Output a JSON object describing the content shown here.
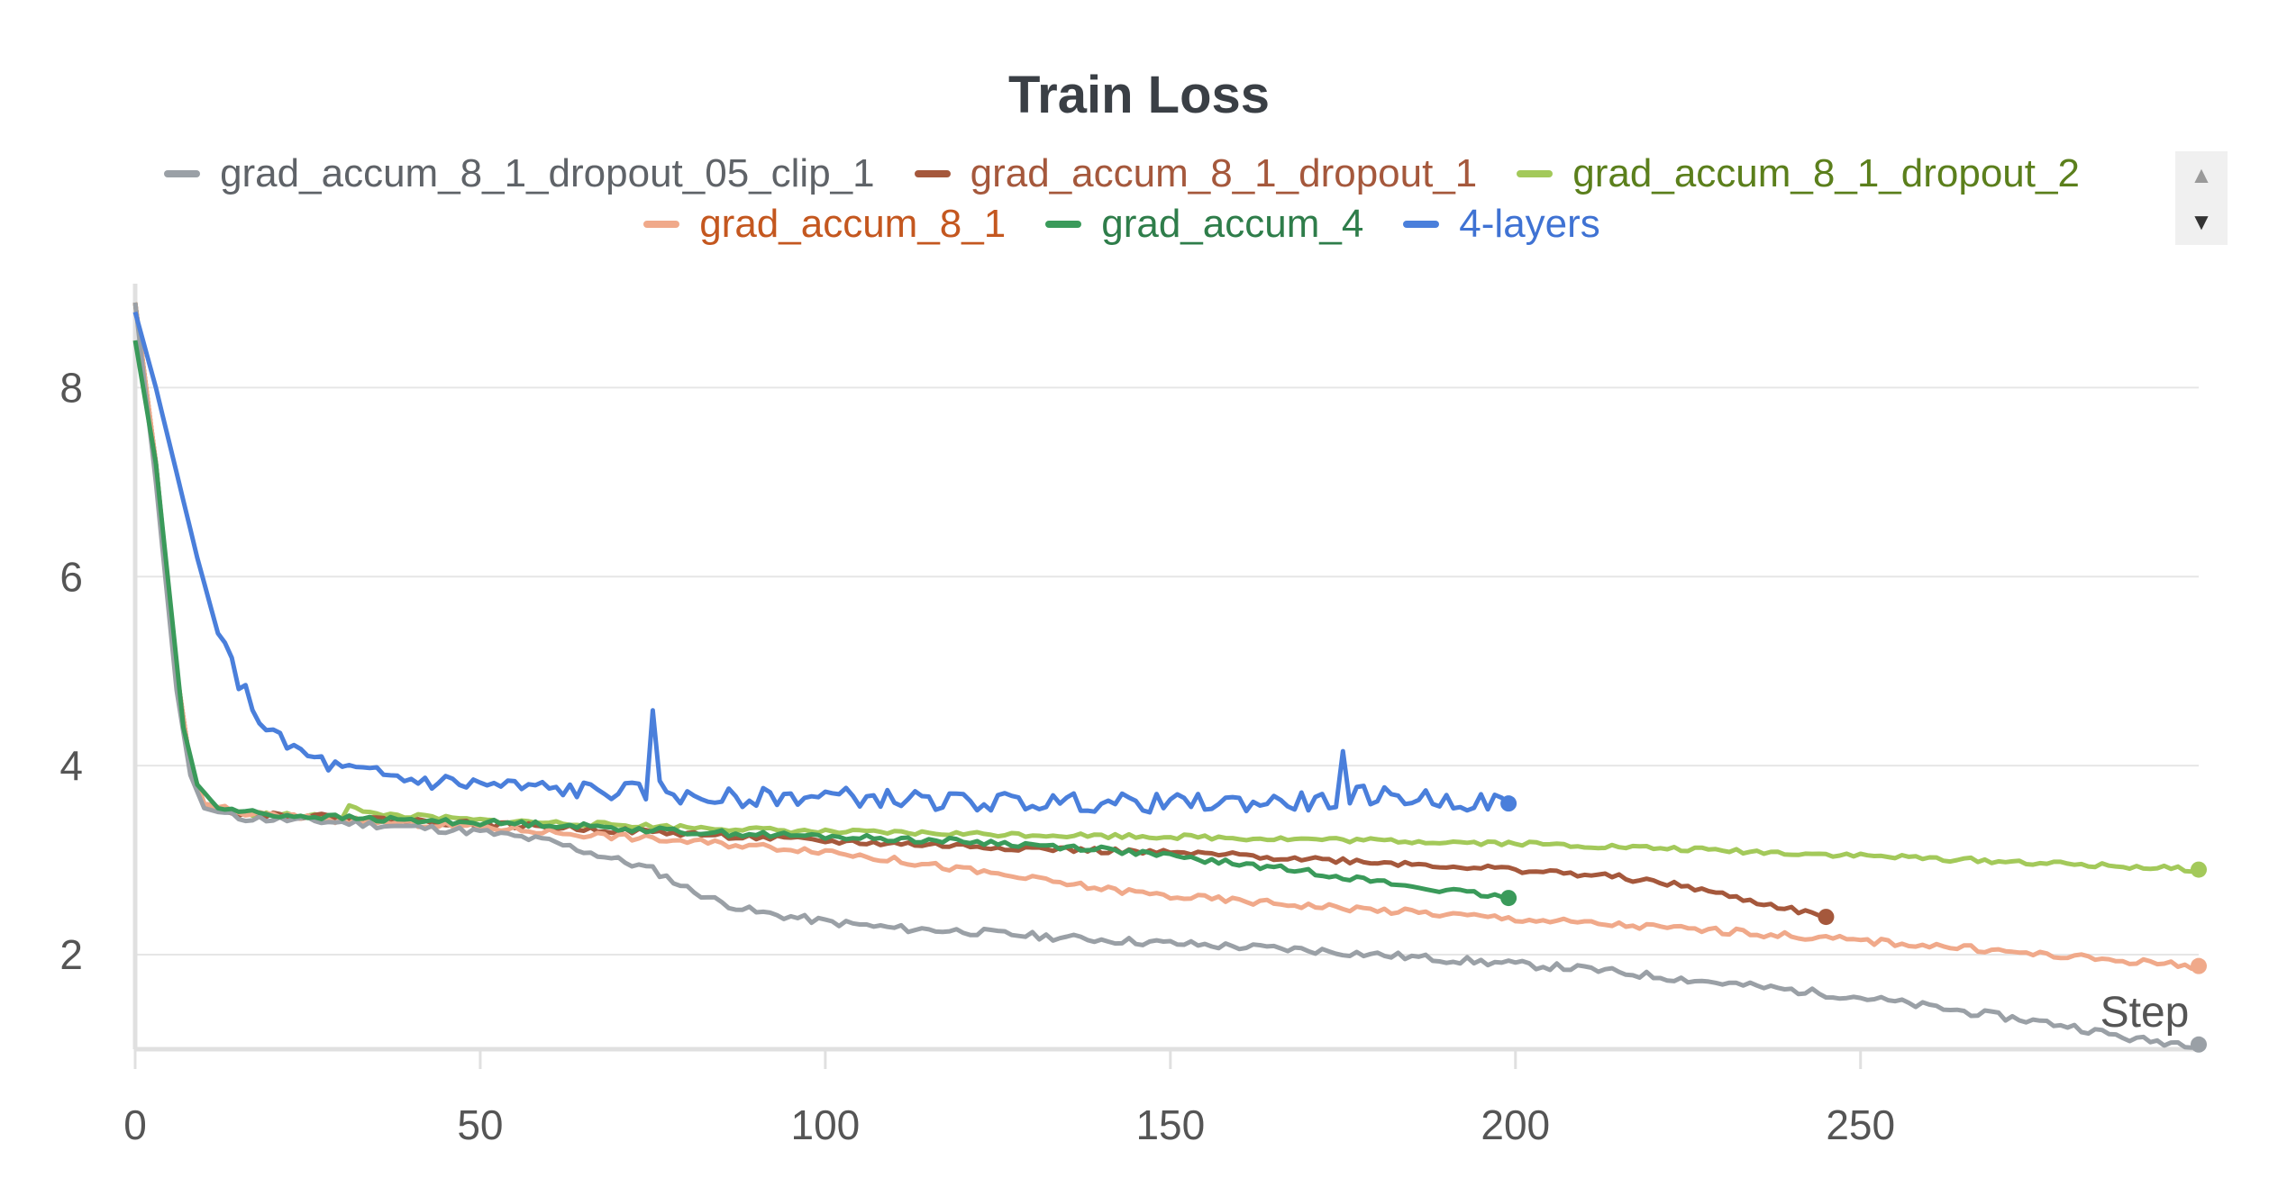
{
  "chart_data": {
    "type": "line",
    "title": "Train Loss",
    "xlabel": "Step",
    "ylabel": "",
    "xlim": [
      0,
      299
    ],
    "ylim": [
      1,
      9.1
    ],
    "xticks": [
      0,
      50,
      100,
      150,
      200,
      250
    ],
    "yticks": [
      2,
      4,
      6,
      8
    ],
    "grid": true,
    "legend_position": "top",
    "series": [
      {
        "name": "grad_accum_8_1_dropout_05_clip_1",
        "color": "#9aa0a6",
        "label_color": "#5f6368",
        "points": [
          [
            0,
            8.9
          ],
          [
            3,
            7.0
          ],
          [
            6,
            4.8
          ],
          [
            8,
            3.9
          ],
          [
            10,
            3.55
          ],
          [
            15,
            3.45
          ],
          [
            30,
            3.4
          ],
          [
            50,
            3.3
          ],
          [
            60,
            3.2
          ],
          [
            70,
            3.0
          ],
          [
            75,
            2.9
          ],
          [
            80,
            2.7
          ],
          [
            85,
            2.55
          ],
          [
            90,
            2.45
          ],
          [
            100,
            2.35
          ],
          [
            110,
            2.28
          ],
          [
            120,
            2.25
          ],
          [
            130,
            2.2
          ],
          [
            150,
            2.12
          ],
          [
            170,
            2.05
          ],
          [
            190,
            1.95
          ],
          [
            210,
            1.85
          ],
          [
            230,
            1.7
          ],
          [
            250,
            1.55
          ],
          [
            260,
            1.45
          ],
          [
            270,
            1.35
          ],
          [
            280,
            1.25
          ],
          [
            290,
            1.1
          ],
          [
            299,
            1.05
          ]
        ],
        "noise": 0.04,
        "seed": 11
      },
      {
        "name": "grad_accum_8_1_dropout_1",
        "color": "#a5583c",
        "label_color": "#a5583c",
        "points": [
          [
            0,
            8.9
          ],
          [
            3,
            7.2
          ],
          [
            6,
            5.0
          ],
          [
            8,
            4.0
          ],
          [
            10,
            3.6
          ],
          [
            15,
            3.5
          ],
          [
            30,
            3.45
          ],
          [
            60,
            3.35
          ],
          [
            80,
            3.28
          ],
          [
            100,
            3.2
          ],
          [
            120,
            3.15
          ],
          [
            140,
            3.1
          ],
          [
            160,
            3.05
          ],
          [
            180,
            2.98
          ],
          [
            200,
            2.9
          ],
          [
            215,
            2.82
          ],
          [
            225,
            2.72
          ],
          [
            232,
            2.6
          ],
          [
            240,
            2.48
          ],
          [
            245,
            2.4
          ]
        ],
        "noise": 0.03,
        "seed": 22
      },
      {
        "name": "grad_accum_8_1_dropout_2",
        "color": "#a3c95a",
        "label_color": "#5b7f1c",
        "points": [
          [
            0,
            8.9
          ],
          [
            3,
            7.2
          ],
          [
            6,
            5.0
          ],
          [
            8,
            4.0
          ],
          [
            10,
            3.6
          ],
          [
            15,
            3.5
          ],
          [
            30,
            3.45
          ],
          [
            31,
            3.6
          ],
          [
            33,
            3.5
          ],
          [
            50,
            3.42
          ],
          [
            80,
            3.35
          ],
          [
            100,
            3.3
          ],
          [
            150,
            3.25
          ],
          [
            200,
            3.18
          ],
          [
            250,
            3.05
          ],
          [
            299,
            2.9
          ]
        ],
        "noise": 0.025,
        "seed": 33
      },
      {
        "name": "grad_accum_8_1",
        "color": "#f0a98a",
        "label_color": "#c4571f",
        "points": [
          [
            0,
            8.9
          ],
          [
            3,
            7.2
          ],
          [
            6,
            5.0
          ],
          [
            8,
            4.0
          ],
          [
            10,
            3.6
          ],
          [
            15,
            3.5
          ],
          [
            30,
            3.42
          ],
          [
            50,
            3.35
          ],
          [
            70,
            3.25
          ],
          [
            90,
            3.15
          ],
          [
            100,
            3.1
          ],
          [
            110,
            3.0
          ],
          [
            120,
            2.9
          ],
          [
            130,
            2.8
          ],
          [
            140,
            2.7
          ],
          [
            150,
            2.62
          ],
          [
            170,
            2.52
          ],
          [
            200,
            2.38
          ],
          [
            230,
            2.25
          ],
          [
            260,
            2.1
          ],
          [
            280,
            1.98
          ],
          [
            299,
            1.88
          ]
        ],
        "noise": 0.035,
        "seed": 44
      },
      {
        "name": "grad_accum_4",
        "color": "#3a9a5a",
        "label_color": "#2e7d4a",
        "points": [
          [
            0,
            8.5
          ],
          [
            3,
            7.2
          ],
          [
            5,
            5.8
          ],
          [
            7,
            4.4
          ],
          [
            9,
            3.8
          ],
          [
            12,
            3.55
          ],
          [
            20,
            3.48
          ],
          [
            40,
            3.42
          ],
          [
            60,
            3.38
          ],
          [
            80,
            3.3
          ],
          [
            100,
            3.25
          ],
          [
            120,
            3.2
          ],
          [
            140,
            3.12
          ],
          [
            155,
            3.0
          ],
          [
            170,
            2.88
          ],
          [
            185,
            2.72
          ],
          [
            199,
            2.6
          ]
        ],
        "noise": 0.03,
        "seed": 55
      },
      {
        "name": "4-layers",
        "color": "#4a7fdb",
        "label_color": "#3f72d3",
        "points": [
          [
            0,
            8.8
          ],
          [
            3,
            8.0
          ],
          [
            6,
            7.1
          ],
          [
            9,
            6.2
          ],
          [
            12,
            5.4
          ],
          [
            15,
            4.9
          ],
          [
            18,
            4.5
          ],
          [
            21,
            4.25
          ],
          [
            25,
            4.1
          ],
          [
            30,
            3.95
          ],
          [
            40,
            3.85
          ],
          [
            60,
            3.75
          ],
          [
            74,
            3.72
          ],
          [
            75,
            4.5
          ],
          [
            76,
            3.8
          ],
          [
            80,
            3.65
          ],
          [
            100,
            3.68
          ],
          [
            120,
            3.62
          ],
          [
            150,
            3.6
          ],
          [
            174,
            3.62
          ],
          [
            175,
            4.1
          ],
          [
            176,
            3.7
          ],
          [
            199,
            3.6
          ]
        ],
        "noise": 0.1,
        "seed": 66
      }
    ]
  },
  "legend": {
    "row1": [
      "grad_accum_8_1_dropout_05_clip_1",
      "grad_accum_8_1_dropout_1",
      "grad_accum_8_1_dropout_2"
    ],
    "row2": [
      "grad_accum_8_1",
      "grad_accum_4",
      "4-layers"
    ],
    "scroll_up_icon": "triangle-up-icon",
    "scroll_down_icon": "triangle-down-icon"
  }
}
